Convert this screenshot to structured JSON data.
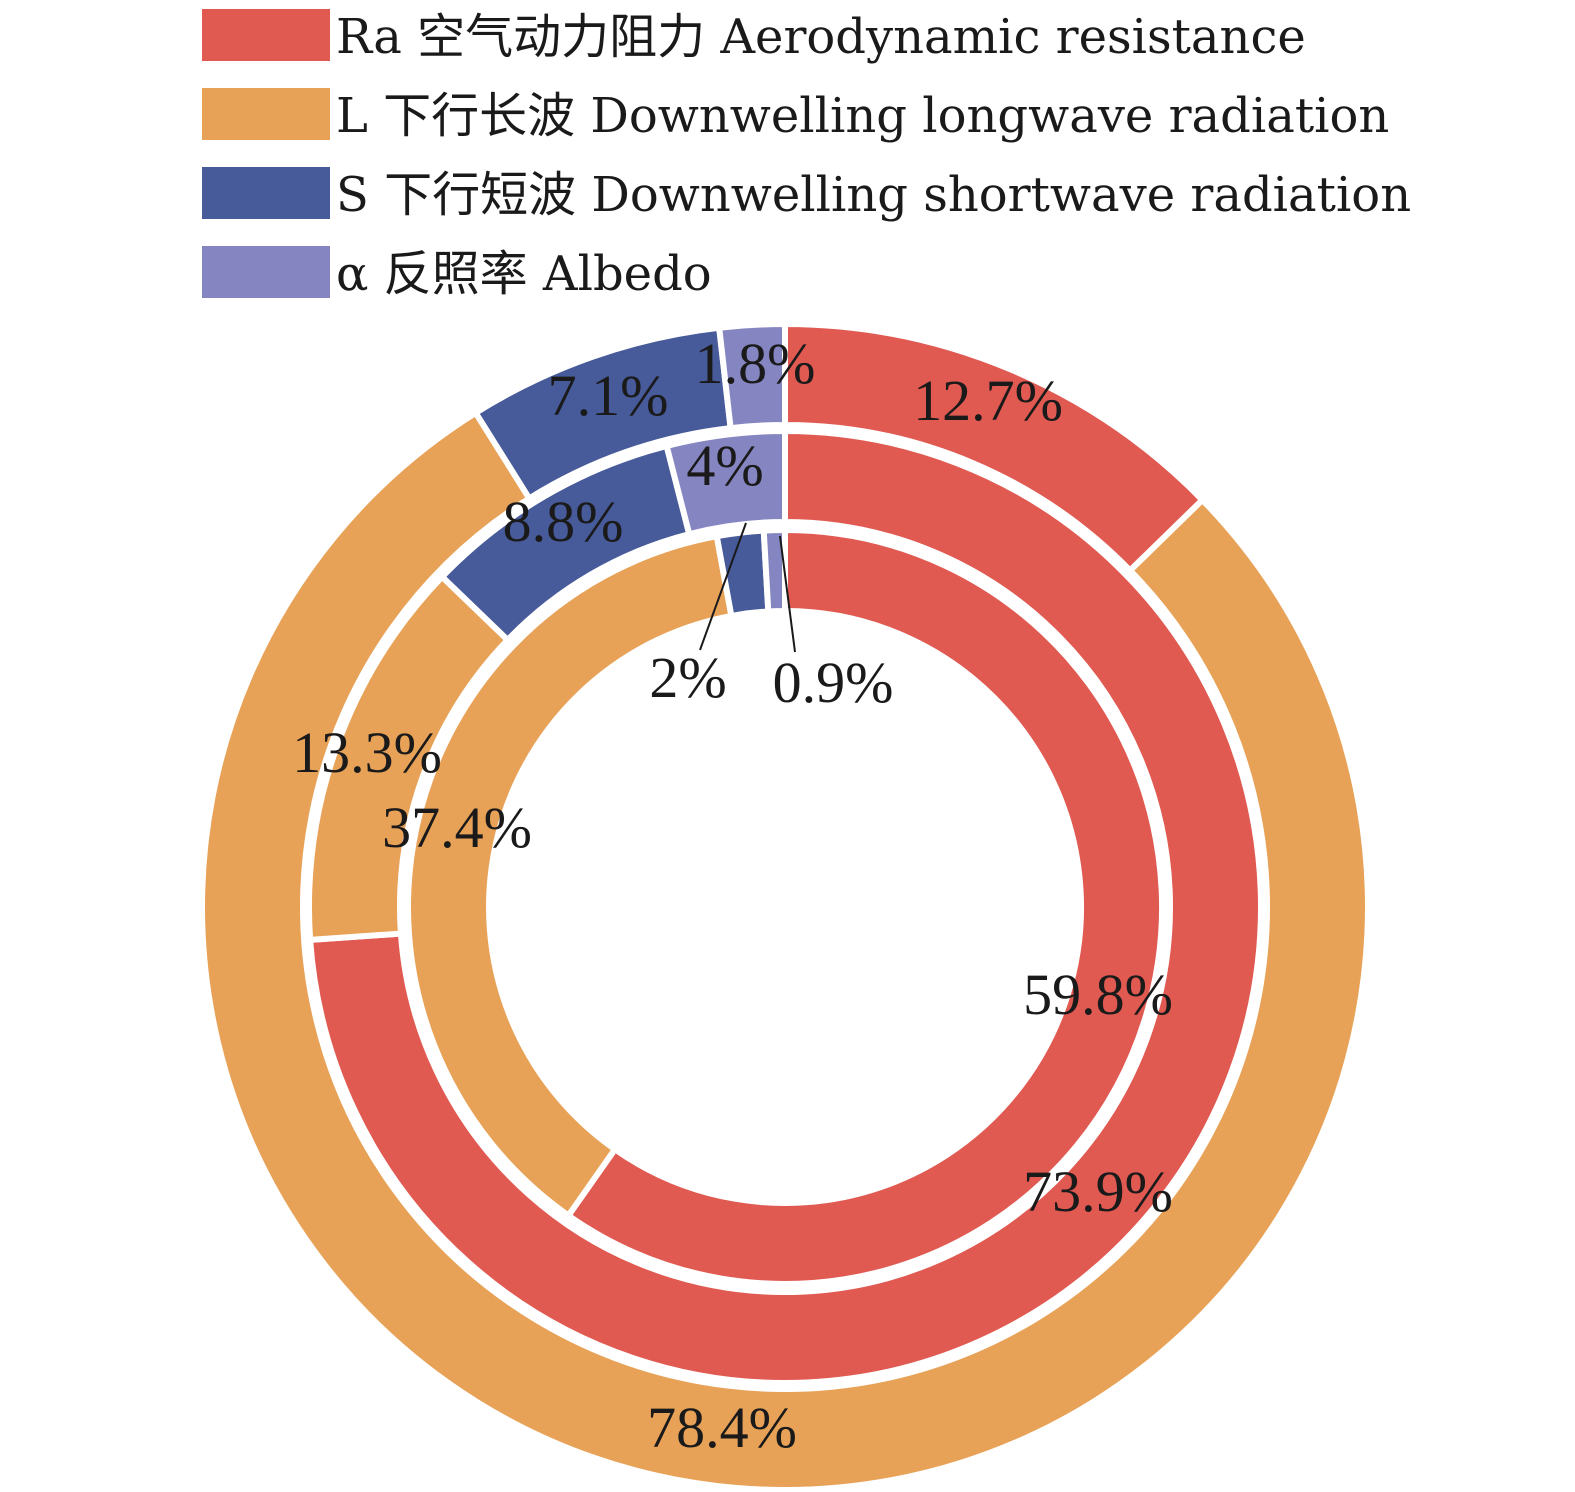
{
  "chart_data": {
    "type": "pie",
    "subtype": "nested-donut",
    "start_angle": "12 o'clock",
    "direction": "clockwise",
    "categories": [
      "Ra 空气动力阻力 Aerodynamic resistance",
      "L 下行长波 Downwelling longwave radiation",
      "S 下行短波 Downwelling shortwave radiation",
      "α 反照率 Albedo"
    ],
    "colors": [
      "#e05a52",
      "#e8a258",
      "#475a99",
      "#8585c2"
    ],
    "legend": {
      "position": "top-left",
      "entries": [
        {
          "key": "Ra",
          "label": "Ra 空气动力阻力 Aerodynamic resistance",
          "color": "#e05a52"
        },
        {
          "key": "L",
          "label": "L 下行长波 Downwelling longwave radiation",
          "color": "#e8a258"
        },
        {
          "key": "S",
          "label": "S 下行短波 Downwelling shortwave radiation",
          "color": "#475a99"
        },
        {
          "key": "alpha",
          "label": "α 反照率 Albedo",
          "color": "#8585c2"
        }
      ]
    },
    "rings": [
      {
        "ring": "outer",
        "slices": [
          {
            "category": "Ra",
            "value": 12.7,
            "label": "12.7%"
          },
          {
            "category": "L",
            "value": 78.4,
            "label": "78.4%"
          },
          {
            "category": "S",
            "value": 7.1,
            "label": "7.1%"
          },
          {
            "category": "alpha",
            "value": 1.8,
            "label": "1.8%"
          }
        ]
      },
      {
        "ring": "middle",
        "slices": [
          {
            "category": "Ra",
            "value": 73.9,
            "label": "73.9%"
          },
          {
            "category": "L",
            "value": 13.3,
            "label": "13.3%"
          },
          {
            "category": "S",
            "value": 8.8,
            "label": "8.8%"
          },
          {
            "category": "alpha",
            "value": 4.0,
            "label": "4%"
          }
        ]
      },
      {
        "ring": "inner",
        "slices": [
          {
            "category": "Ra",
            "value": 59.8,
            "label": "59.8%"
          },
          {
            "category": "L",
            "value": 37.4,
            "label": "37.4%"
          },
          {
            "category": "S",
            "value": 2.0,
            "label": "2%"
          },
          {
            "category": "alpha",
            "value": 0.9,
            "label": "0.9%"
          }
        ]
      }
    ]
  }
}
